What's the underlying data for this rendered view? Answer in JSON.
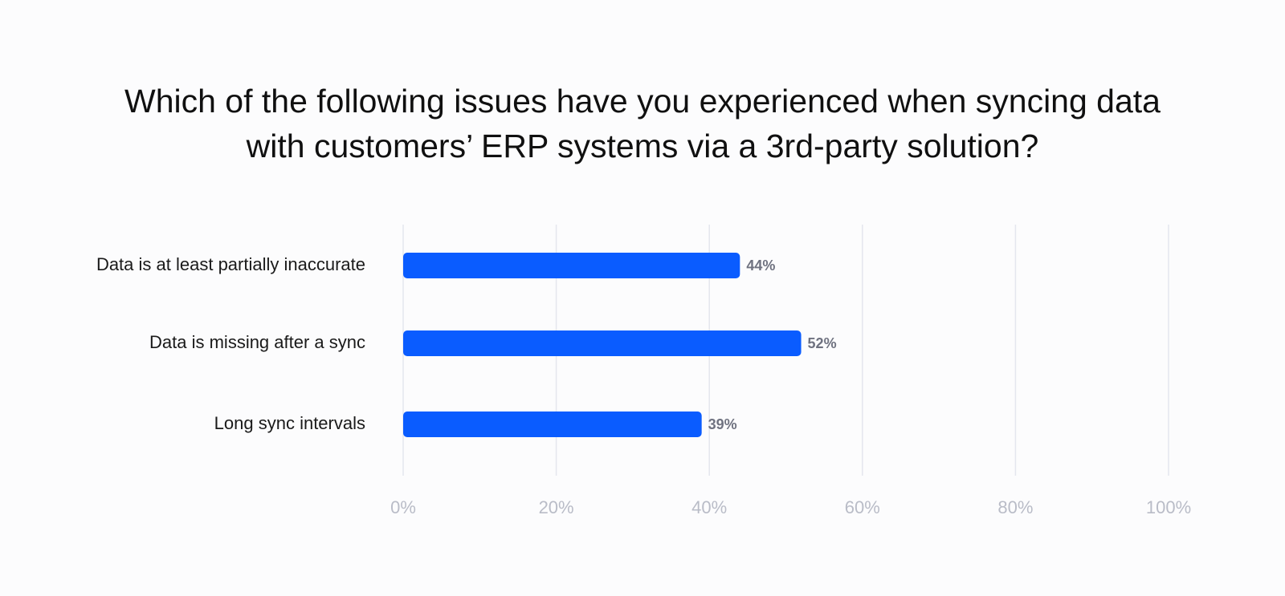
{
  "chart_data": {
    "type": "bar",
    "orientation": "horizontal",
    "title_lines": [
      "Which of the following issues have you experienced when syncing data",
      "with customers’ ERP systems via a 3rd-party solution?"
    ],
    "categories": [
      "Data is at least partially inaccurate",
      "Data is missing after a sync",
      "Long sync intervals"
    ],
    "values": [
      44,
      52,
      39
    ],
    "value_labels": [
      "44%",
      "52%",
      "39%"
    ],
    "xlim": [
      0,
      100
    ],
    "x_ticks": [
      "0%",
      "20%",
      "40%",
      "60%",
      "80%",
      "100%"
    ],
    "grid": true,
    "legend": "none",
    "colors": {
      "bar": "#0a5cff",
      "grid": "#e4e6ee",
      "tick_text": "#b9bcc7",
      "value_text": "#6f7280",
      "category_text": "#1a1a1a",
      "background": "#fcfcfd"
    }
  }
}
